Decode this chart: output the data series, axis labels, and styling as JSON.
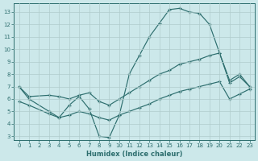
{
  "xlabel": "Humidex (Indice chaleur)",
  "xlim": [
    -0.5,
    23.5
  ],
  "ylim": [
    2.7,
    13.7
  ],
  "yticks": [
    3,
    4,
    5,
    6,
    7,
    8,
    9,
    10,
    11,
    12,
    13
  ],
  "xticks": [
    0,
    1,
    2,
    3,
    4,
    5,
    6,
    7,
    8,
    9,
    10,
    11,
    12,
    13,
    14,
    15,
    16,
    17,
    18,
    19,
    20,
    21,
    22,
    23
  ],
  "bg_color": "#cce8ea",
  "line_color": "#2d6e6e",
  "grid_color": "#b0cccc",
  "line1_x": [
    0,
    1,
    3,
    4,
    5,
    6,
    7,
    8,
    9,
    10,
    11,
    12,
    13,
    14,
    15,
    16,
    17,
    18,
    19,
    20,
    21,
    22,
    23
  ],
  "line1_y": [
    7.0,
    6.0,
    5.0,
    4.5,
    5.5,
    6.2,
    5.2,
    3.0,
    2.9,
    4.7,
    8.0,
    9.5,
    11.0,
    12.1,
    13.2,
    13.3,
    13.0,
    12.9,
    12.0,
    9.7,
    7.5,
    8.0,
    7.0
  ],
  "line2_x": [
    0,
    1,
    3,
    4,
    5,
    6,
    7,
    8,
    9,
    10,
    11,
    12,
    13,
    14,
    15,
    16,
    17,
    18,
    19,
    20,
    21,
    22,
    23
  ],
  "line2_y": [
    7.0,
    6.2,
    6.3,
    6.2,
    6.0,
    6.3,
    6.5,
    5.8,
    5.5,
    6.0,
    6.5,
    7.0,
    7.5,
    8.0,
    8.3,
    8.8,
    9.0,
    9.2,
    9.5,
    9.7,
    7.3,
    7.8,
    7.0
  ],
  "line3_x": [
    0,
    1,
    3,
    4,
    5,
    6,
    7,
    8,
    9,
    10,
    11,
    12,
    13,
    14,
    15,
    16,
    17,
    18,
    19,
    20,
    21,
    22,
    23
  ],
  "line3_y": [
    5.8,
    5.5,
    4.8,
    4.5,
    4.7,
    5.0,
    4.8,
    4.5,
    4.3,
    4.7,
    5.0,
    5.3,
    5.6,
    6.0,
    6.3,
    6.6,
    6.8,
    7.0,
    7.2,
    7.4,
    6.0,
    6.4,
    6.8
  ]
}
